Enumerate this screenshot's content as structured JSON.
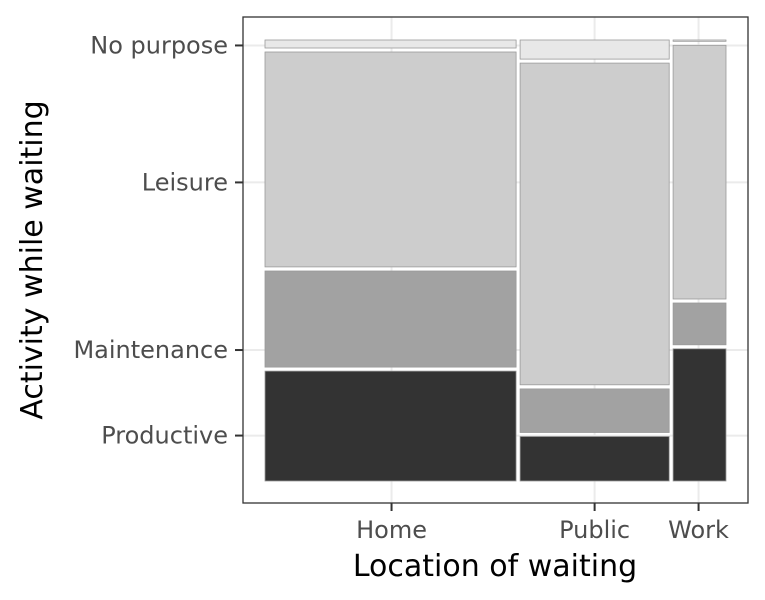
{
  "chart_data": {
    "type": "mosaic",
    "xlabel": "Location of waiting",
    "ylabel": "Activity while waiting",
    "x_categories": [
      "Home",
      "Public",
      "Work"
    ],
    "x_proportions": [
      0.549,
      0.332,
      0.119
    ],
    "y_categories": [
      "Productive",
      "Maintenance",
      "Leisure",
      "No purpose"
    ],
    "stack_order": "bottom-to-top",
    "proportions": {
      "Home": {
        "Productive": 0.256,
        "Maintenance": 0.225,
        "Leisure": 0.492,
        "No purpose": 0.027
      },
      "Public": {
        "Productive": 0.109,
        "Maintenance": 0.107,
        "Leisure": 0.732,
        "No purpose": 0.052
      },
      "Work": {
        "Productive": 0.306,
        "Maintenance": 0.103,
        "Leisure": 0.579,
        "No purpose": 0.012
      }
    },
    "fill_colors": {
      "Productive": "#333333",
      "Maintenance": "#a2a2a2",
      "Leisure": "#cdcdcd",
      "No purpose": "#e8e8e8"
    },
    "tile_border_color": "#ffffff",
    "grid": true,
    "grid_color": "#ebebeb",
    "legend": "none"
  }
}
